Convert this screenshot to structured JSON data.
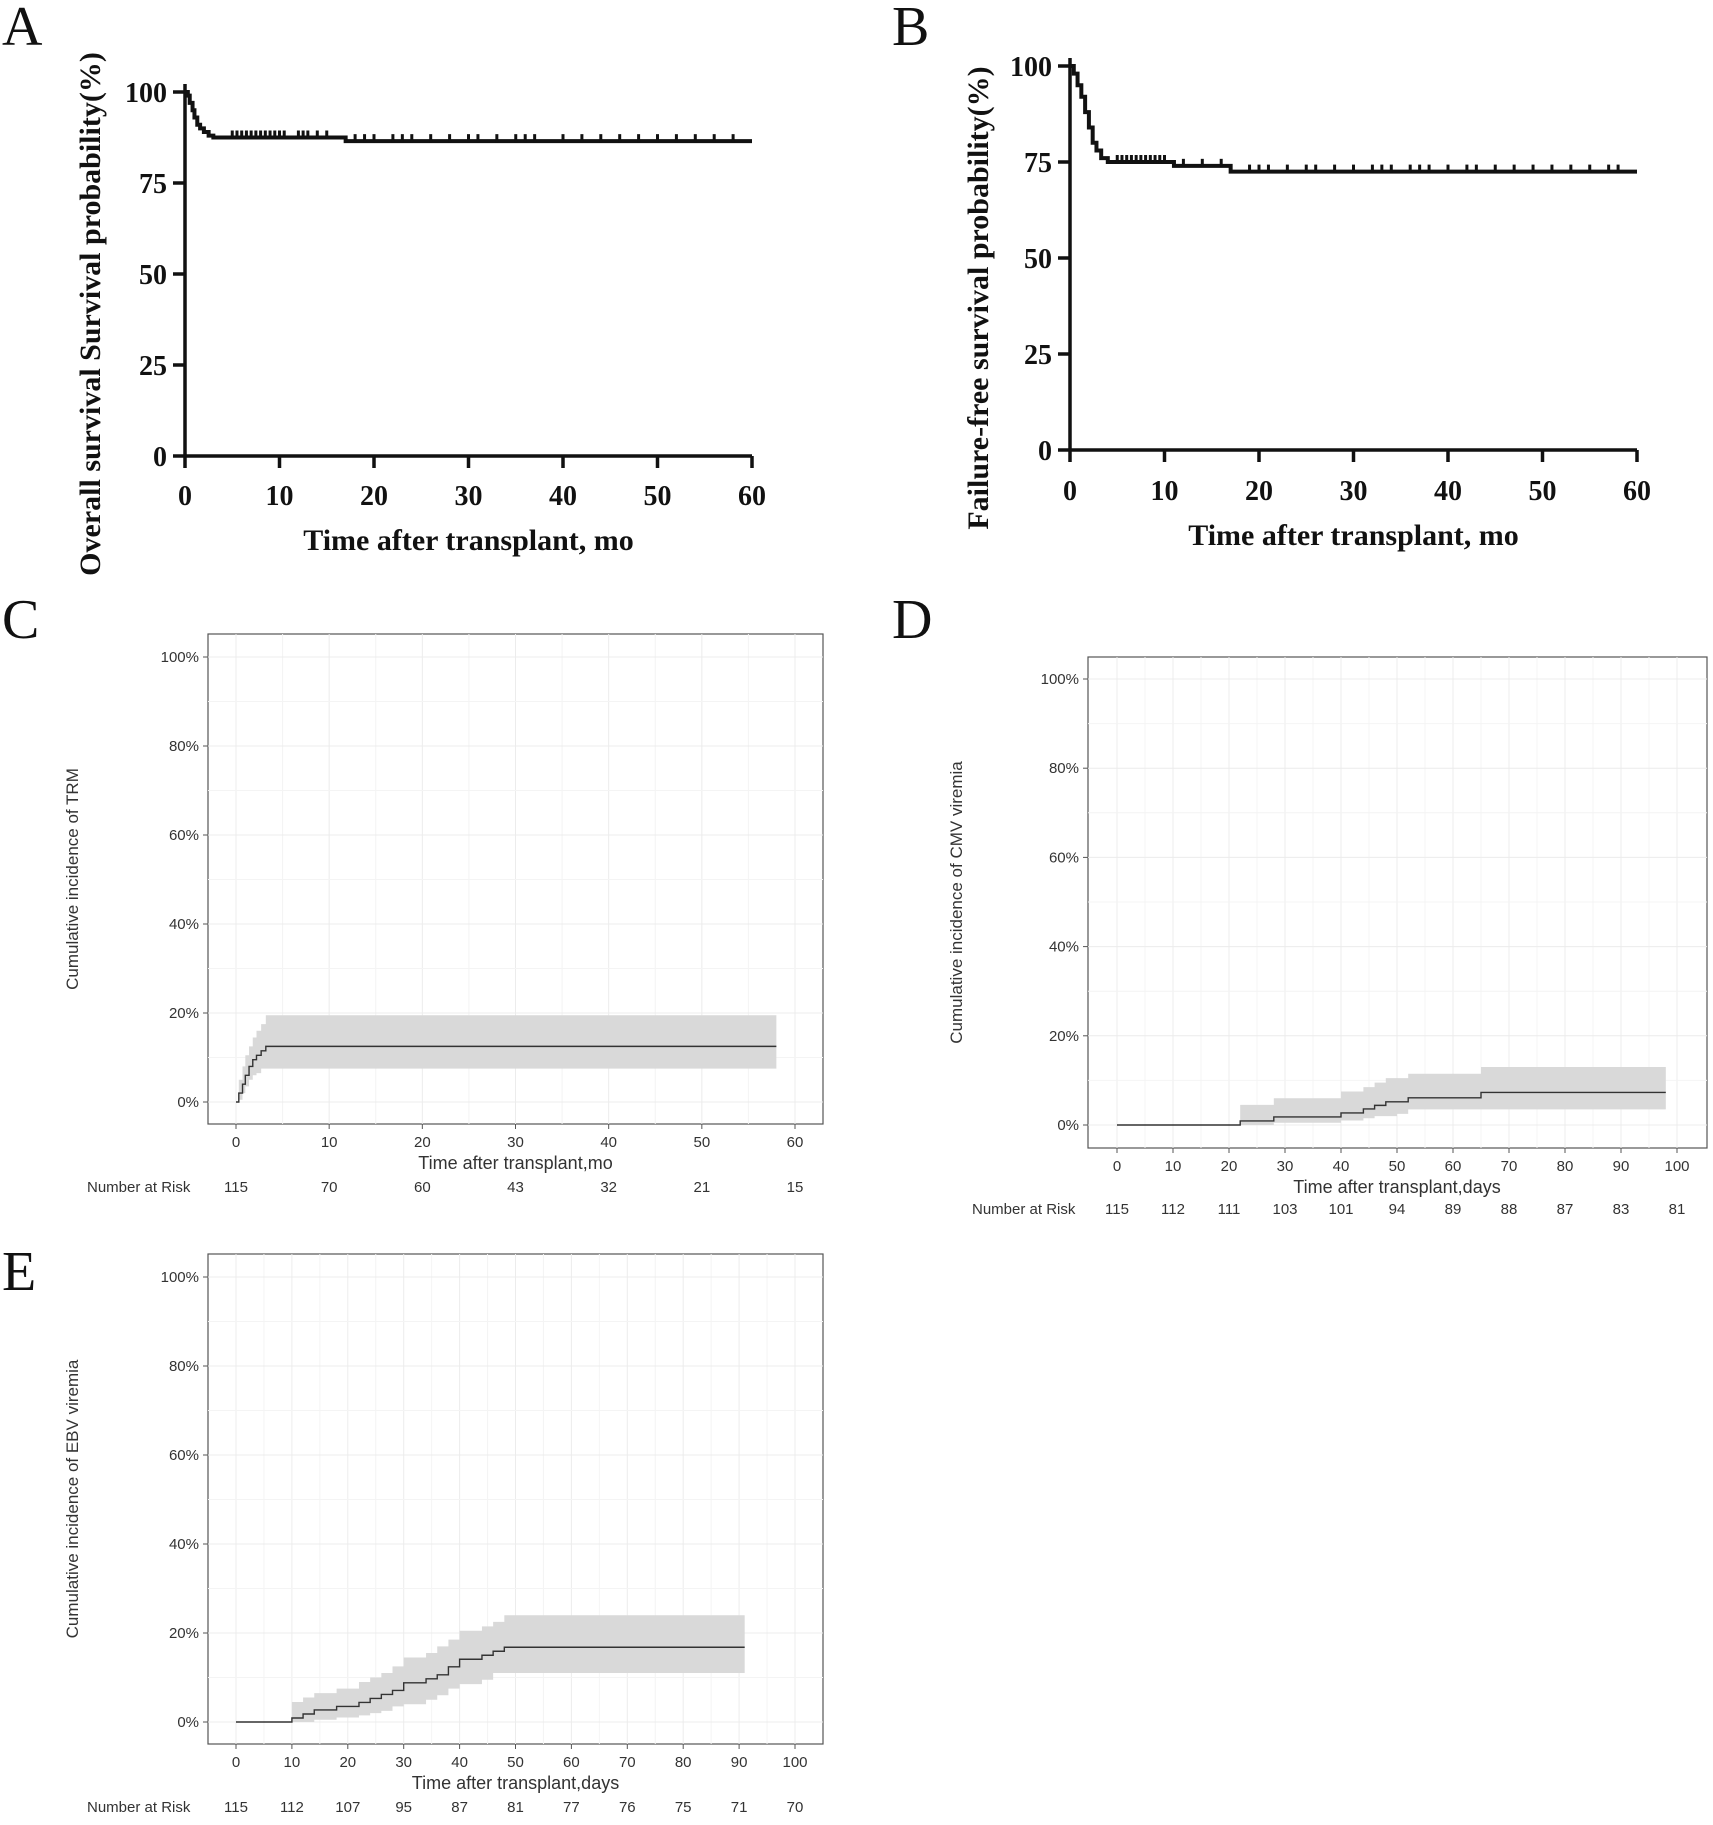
{
  "chart_data": [
    {
      "panel": "A",
      "type": "line",
      "style": "km",
      "title": "",
      "xlabel": "Time after transplant, mo",
      "ylabel": "Overall survival Survival probability(%)",
      "xlim": [
        0,
        60
      ],
      "ylim": [
        0,
        100
      ],
      "xticks": [
        "0",
        "10",
        "20",
        "30",
        "40",
        "50",
        "60"
      ],
      "yticks": [
        "0",
        "25",
        "50",
        "75",
        "100"
      ],
      "series": [
        {
          "name": "Overall survival",
          "x": [
            0,
            0.3,
            0.5,
            0.8,
            1.0,
            1.3,
            1.6,
            2.0,
            2.5,
            3.0,
            17,
            60
          ],
          "y": [
            100,
            99,
            97,
            95,
            93,
            91,
            90,
            89,
            88,
            87.5,
            86.5,
            86.5
          ],
          "censor": [
            5,
            5.5,
            6,
            6.5,
            7,
            7.5,
            8,
            8.5,
            9,
            9.5,
            10,
            10.5,
            12,
            12.5,
            13,
            14,
            15,
            18,
            19,
            20,
            22,
            23,
            24,
            26,
            28,
            30,
            31,
            33,
            35,
            36,
            37,
            40,
            42,
            44,
            46,
            48,
            50,
            52,
            54,
            56,
            58
          ]
        }
      ]
    },
    {
      "panel": "B",
      "type": "line",
      "style": "km",
      "title": "",
      "xlabel": "Time after transplant, mo",
      "ylabel": "Failure-free survival probability(%)",
      "xlim": [
        0,
        60
      ],
      "ylim": [
        0,
        100
      ],
      "xticks": [
        "0",
        "10",
        "20",
        "30",
        "40",
        "50",
        "60"
      ],
      "yticks": [
        "0",
        "25",
        "50",
        "75",
        "100"
      ],
      "series": [
        {
          "name": "Failure-free survival",
          "x": [
            0,
            0.4,
            0.8,
            1.2,
            1.6,
            2.0,
            2.4,
            2.8,
            3.3,
            4.0,
            11,
            17,
            60
          ],
          "y": [
            100,
            98,
            95,
            92,
            88,
            84,
            80,
            78,
            76,
            75,
            74,
            72.5,
            72.5
          ],
          "censor": [
            5,
            5.5,
            6,
            6.5,
            7,
            7.5,
            8,
            8.5,
            9,
            9.5,
            10,
            12,
            14,
            16,
            19,
            20,
            21,
            23,
            25,
            26,
            28,
            30,
            32,
            33,
            34,
            36,
            37,
            38,
            40,
            42,
            43,
            45,
            47,
            49,
            51,
            53,
            55,
            57,
            58
          ]
        }
      ]
    },
    {
      "panel": "C",
      "type": "area",
      "style": "cif",
      "title": "",
      "xlabel": "Time after transplant,mo",
      "ylabel": "Cumulative incidence of TRM",
      "xlim": [
        0,
        60
      ],
      "ylim": [
        0,
        100
      ],
      "xticks": [
        "0",
        "10",
        "20",
        "30",
        "40",
        "50",
        "60"
      ],
      "yticks": [
        "0%",
        "20%",
        "40%",
        "60%",
        "80%",
        "100%"
      ],
      "risk_label": "Number at Risk",
      "risk": [
        "115",
        "70",
        "60",
        "43",
        "32",
        "21",
        "15"
      ],
      "series": [
        {
          "name": "TRM",
          "x": [
            0,
            0.3,
            0.7,
            1.0,
            1.4,
            1.8,
            2.2,
            2.7,
            3.2,
            58
          ],
          "y": [
            0,
            2,
            4,
            6,
            8,
            9.5,
            10.5,
            11.5,
            12.5,
            12.5
          ],
          "lower": [
            0,
            0,
            0.5,
            2,
            3.5,
            5,
            6,
            6.5,
            7.5,
            7.5
          ],
          "upper": [
            0,
            5,
            8,
            10.5,
            12.5,
            14.5,
            16,
            17.5,
            19.5,
            19.5
          ]
        }
      ]
    },
    {
      "panel": "D",
      "type": "area",
      "style": "cif",
      "title": "",
      "xlabel": "Time after transplant,days",
      "ylabel": "Cumulative incidence of CMV viremia",
      "xlim": [
        0,
        100
      ],
      "ylim": [
        0,
        100
      ],
      "xticks": [
        "0",
        "10",
        "20",
        "30",
        "40",
        "50",
        "60",
        "70",
        "80",
        "90",
        "100"
      ],
      "yticks": [
        "0%",
        "20%",
        "40%",
        "60%",
        "80%",
        "100%"
      ],
      "risk_label": "Number at Risk",
      "risk": [
        "115",
        "112",
        "111",
        "103",
        "101",
        "94",
        "89",
        "88",
        "87",
        "83",
        "81"
      ],
      "series": [
        {
          "name": "CMV viremia",
          "x": [
            0,
            22,
            28,
            40,
            44,
            46,
            48,
            50,
            52,
            65,
            98
          ],
          "y": [
            0,
            0.9,
            1.8,
            2.7,
            3.6,
            4.4,
            5.2,
            5.2,
            6.1,
            7.3,
            7.3
          ],
          "lower": [
            0,
            0,
            0,
            0.5,
            1,
            1.5,
            2,
            2,
            2.5,
            3.5,
            3.5
          ],
          "upper": [
            0,
            4.5,
            6,
            7.5,
            8.5,
            9.5,
            10.5,
            10.5,
            11.5,
            13,
            13
          ]
        }
      ]
    },
    {
      "panel": "E",
      "type": "area",
      "style": "cif",
      "title": "",
      "xlabel": "Time after transplant,days",
      "ylabel": "Cumulative incidence of EBV viremia",
      "xlim": [
        0,
        100
      ],
      "ylim": [
        0,
        100
      ],
      "xticks": [
        "0",
        "10",
        "20",
        "30",
        "40",
        "50",
        "60",
        "70",
        "80",
        "90",
        "100"
      ],
      "yticks": [
        "0%",
        "20%",
        "40%",
        "60%",
        "80%",
        "100%"
      ],
      "risk_label": "Number at Risk",
      "risk": [
        "115",
        "112",
        "107",
        "95",
        "87",
        "81",
        "77",
        "76",
        "75",
        "71",
        "70"
      ],
      "series": [
        {
          "name": "EBV viremia",
          "x": [
            0,
            10,
            12,
            14,
            18,
            22,
            24,
            26,
            28,
            30,
            34,
            36,
            38,
            40,
            44,
            46,
            48,
            91
          ],
          "y": [
            0,
            0.9,
            1.8,
            2.7,
            3.5,
            4.4,
            5.3,
            6.2,
            7.1,
            8.8,
            9.7,
            10.6,
            12.4,
            14.1,
            15,
            15.9,
            16.8,
            16.8
          ],
          "lower": [
            0,
            0,
            0,
            0,
            0.5,
            1,
            1.5,
            2,
            2.5,
            3.5,
            4,
            5,
            6,
            7.5,
            8.5,
            9.5,
            11,
            11
          ],
          "upper": [
            0,
            4.5,
            5.5,
            6.5,
            7.5,
            9,
            10,
            11,
            12.5,
            14.5,
            15.5,
            17,
            18.5,
            20.5,
            21.5,
            22.5,
            24,
            24
          ]
        }
      ]
    }
  ]
}
